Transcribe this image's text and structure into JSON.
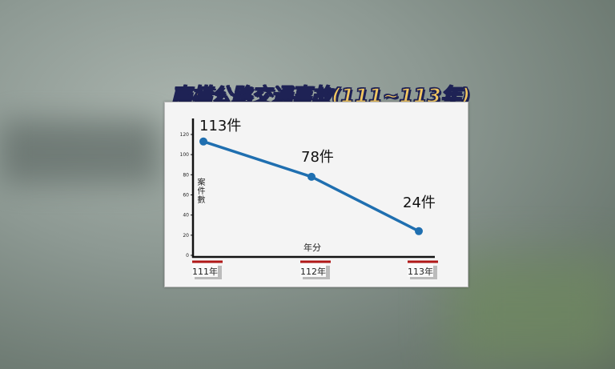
{
  "chart_data": {
    "type": "line",
    "title": "南橫公路交通事故(111~113年)",
    "xlabel": "年分",
    "ylabel": "案件數",
    "categories": [
      "111年",
      "112年",
      "113年"
    ],
    "values": [
      113,
      78,
      24
    ],
    "data_labels": [
      "113件",
      "78件",
      "24件"
    ],
    "yticks": [
      0,
      20,
      40,
      60,
      80,
      100,
      120
    ],
    "ylim": [
      0,
      135
    ],
    "grid": false,
    "colors": {
      "line": "#1f6fb0",
      "tick_underline": "#b01818",
      "title_fill": "#f2c660",
      "title_outline": "#1e2255"
    }
  }
}
